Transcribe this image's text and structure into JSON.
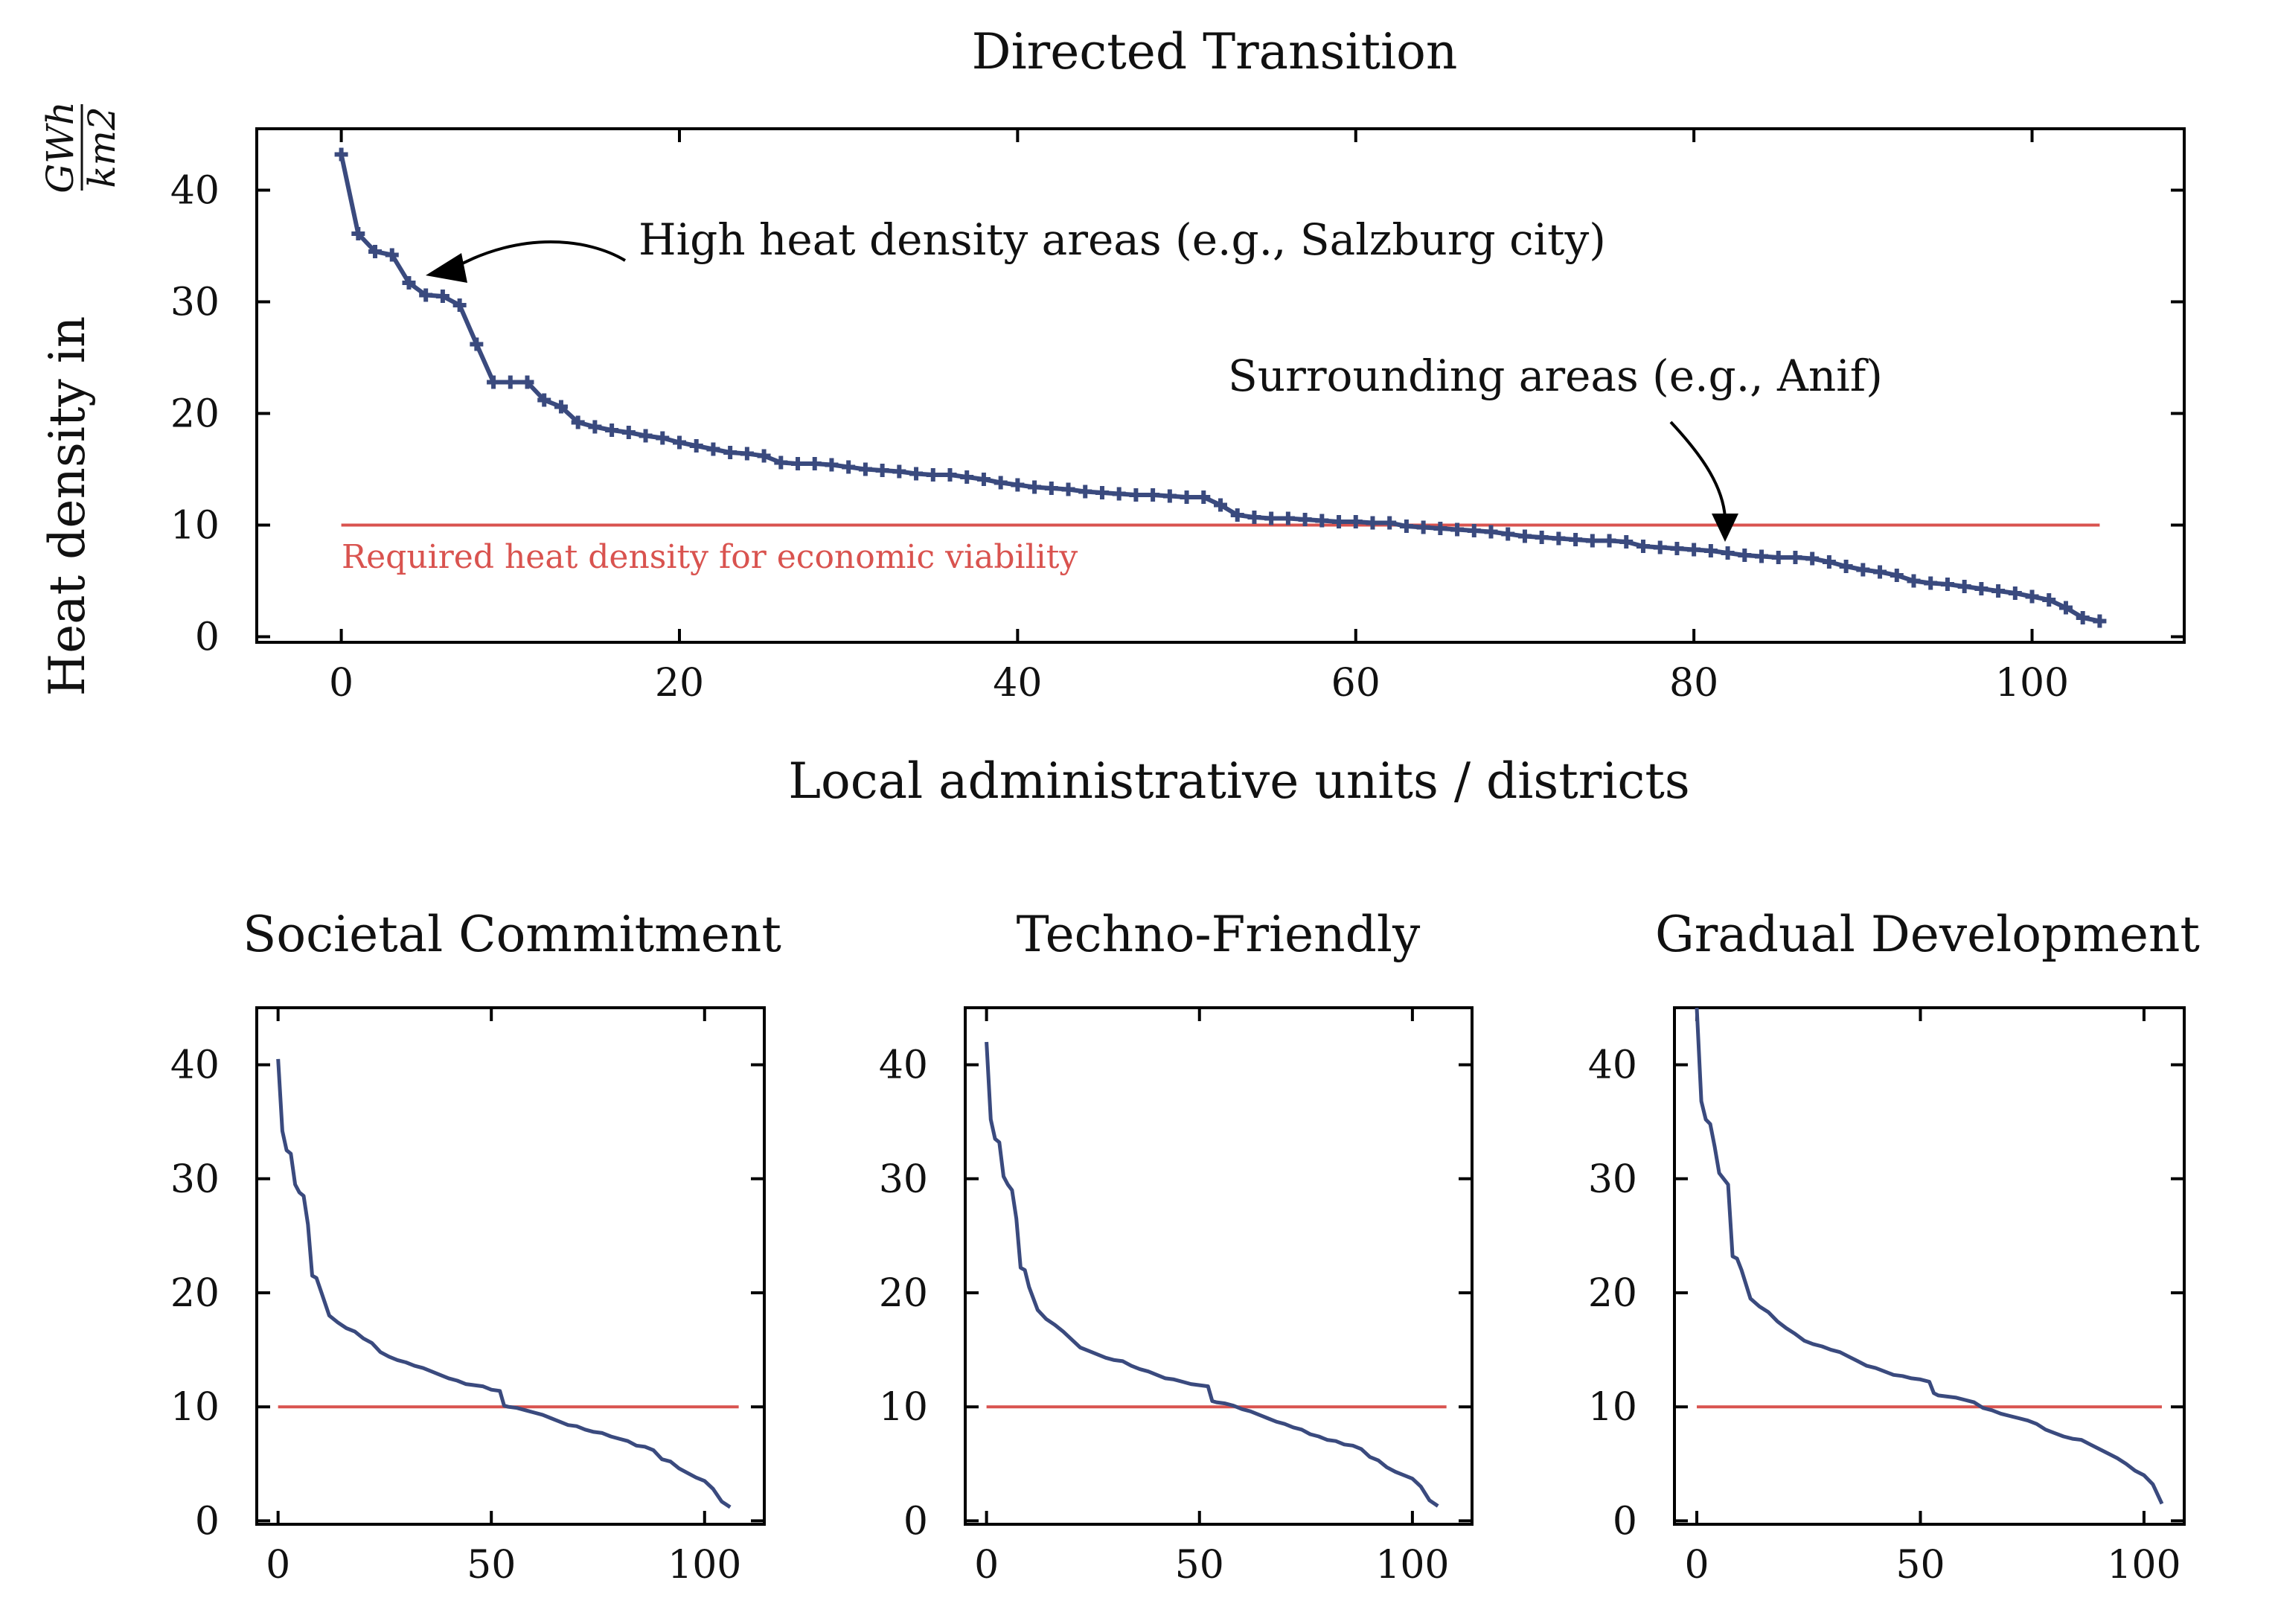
{
  "colors": {
    "series": "#3a4a7e",
    "threshold": "#d9534f",
    "axis": "#000000"
  },
  "shared": {
    "ylabel": "Heat density in",
    "ylabel_unit_numerator": "GWh",
    "ylabel_unit_denominator": "km2"
  },
  "chart_data": [
    {
      "id": "main",
      "type": "line",
      "title": "Directed Transition",
      "xlabel": "Local administrative units / districts",
      "ylabel": "Heat density in GWh/km2",
      "xlim": [
        -5,
        109
      ],
      "ylim": [
        -0.5,
        45.5
      ],
      "xticks": [
        0,
        20,
        40,
        60,
        80,
        100
      ],
      "yticks": [
        0,
        10,
        20,
        30,
        40
      ],
      "marker": "plus",
      "series": [
        {
          "x": [
            0,
            1,
            2,
            3,
            4,
            5,
            6,
            7,
            8,
            9,
            10,
            11,
            12,
            13,
            14,
            15,
            16,
            17,
            18,
            19,
            20,
            21,
            22,
            23,
            24,
            25,
            26,
            27,
            28,
            29,
            30,
            31,
            32,
            33,
            34,
            35,
            36,
            37,
            38,
            39,
            40,
            41,
            42,
            43,
            44,
            45,
            46,
            47,
            48,
            49,
            50,
            51,
            52,
            53,
            54,
            55,
            56,
            57,
            58,
            59,
            60,
            61,
            62,
            63,
            64,
            65,
            66,
            67,
            68,
            69,
            70,
            71,
            72,
            73,
            74,
            75,
            76,
            77,
            78,
            79,
            80,
            81,
            82,
            83,
            84,
            85,
            86,
            87,
            88,
            89,
            90,
            91,
            92,
            93,
            94,
            95,
            96,
            97,
            98,
            99,
            100,
            101,
            102,
            103,
            104
          ],
          "values": [
            43.2,
            36.1,
            34.5,
            34.2,
            31.7,
            30.6,
            30.5,
            29.7,
            26.2,
            22.8,
            22.8,
            22.8,
            21.2,
            20.6,
            19.2,
            18.8,
            18.5,
            18.3,
            18.0,
            17.8,
            17.4,
            17.1,
            16.8,
            16.5,
            16.4,
            16.2,
            15.6,
            15.5,
            15.5,
            15.4,
            15.2,
            15.0,
            14.9,
            14.8,
            14.6,
            14.5,
            14.5,
            14.3,
            14.1,
            13.8,
            13.6,
            13.4,
            13.3,
            13.2,
            13.0,
            12.9,
            12.8,
            12.7,
            12.7,
            12.6,
            12.5,
            12.5,
            11.8,
            10.9,
            10.7,
            10.6,
            10.6,
            10.5,
            10.4,
            10.3,
            10.3,
            10.2,
            10.2,
            9.9,
            9.8,
            9.7,
            9.6,
            9.5,
            9.4,
            9.2,
            9.0,
            8.9,
            8.8,
            8.7,
            8.6,
            8.6,
            8.5,
            8.1,
            8.0,
            7.9,
            7.8,
            7.7,
            7.5,
            7.3,
            7.2,
            7.1,
            7.1,
            7.0,
            6.7,
            6.3,
            6.0,
            5.8,
            5.5,
            5.0,
            4.8,
            4.7,
            4.5,
            4.3,
            4.1,
            3.9,
            3.6,
            3.3,
            2.6,
            1.7,
            1.4
          ]
        }
      ],
      "threshold": {
        "value": 10,
        "x": [
          0,
          104
        ],
        "label": "Required heat density for economic viability"
      },
      "annotations": [
        {
          "text": "High heat density areas (e.g., Salzburg city)",
          "target": [
            5,
            31.5
          ]
        },
        {
          "text": "Surrounding areas (e.g., Anif)",
          "target": [
            82,
            8.7
          ]
        }
      ]
    },
    {
      "id": "societal",
      "type": "line",
      "title": "Societal Commitment",
      "xlim": [
        -5,
        114
      ],
      "ylim": [
        -0.3,
        45
      ],
      "xticks": [
        0,
        50,
        100
      ],
      "yticks": [
        0,
        10,
        20,
        30,
        40
      ],
      "series": [
        {
          "x": [
            0,
            1,
            2,
            3,
            4,
            5,
            6,
            7,
            8,
            9,
            10,
            12,
            14,
            16,
            18,
            20,
            22,
            24,
            26,
            28,
            30,
            32,
            34,
            36,
            38,
            40,
            42,
            44,
            46,
            48,
            50,
            52,
            53,
            54,
            56,
            58,
            60,
            62,
            64,
            66,
            68,
            70,
            72,
            74,
            76,
            78,
            80,
            82,
            84,
            86,
            88,
            90,
            92,
            94,
            96,
            98,
            100,
            102,
            104,
            106
          ],
          "values": [
            40.5,
            34.2,
            32.5,
            32.2,
            29.5,
            28.8,
            28.5,
            26.0,
            21.5,
            21.3,
            20.2,
            18.0,
            17.4,
            16.9,
            16.6,
            16.0,
            15.6,
            14.8,
            14.4,
            14.1,
            13.9,
            13.6,
            13.4,
            13.1,
            12.8,
            12.5,
            12.3,
            12.0,
            11.9,
            11.8,
            11.5,
            11.4,
            10.1,
            10.0,
            9.9,
            9.7,
            9.5,
            9.3,
            9.0,
            8.7,
            8.4,
            8.3,
            8.0,
            7.8,
            7.7,
            7.4,
            7.2,
            7.0,
            6.6,
            6.5,
            6.2,
            5.4,
            5.2,
            4.6,
            4.2,
            3.8,
            3.5,
            2.8,
            1.7,
            1.2
          ]
        }
      ],
      "threshold": {
        "value": 10,
        "x": [
          0,
          108
        ]
      }
    },
    {
      "id": "techno",
      "type": "line",
      "title": "Techno-Friendly",
      "xlim": [
        -5,
        114
      ],
      "ylim": [
        -0.3,
        45
      ],
      "xticks": [
        0,
        50,
        100
      ],
      "yticks": [
        0,
        10,
        20,
        30,
        40
      ],
      "series": [
        {
          "x": [
            0,
            1,
            2,
            3,
            4,
            5,
            6,
            7,
            8,
            9,
            10,
            12,
            14,
            16,
            18,
            20,
            22,
            24,
            26,
            28,
            30,
            32,
            34,
            36,
            38,
            40,
            42,
            44,
            46,
            48,
            50,
            52,
            53,
            54,
            56,
            58,
            60,
            62,
            64,
            66,
            68,
            70,
            72,
            74,
            76,
            78,
            80,
            82,
            84,
            86,
            88,
            90,
            92,
            94,
            96,
            98,
            100,
            102,
            104,
            106
          ],
          "values": [
            42.0,
            35.2,
            33.5,
            33.2,
            30.2,
            29.5,
            29.0,
            26.5,
            22.2,
            22.0,
            20.5,
            18.5,
            17.7,
            17.2,
            16.6,
            15.9,
            15.2,
            14.9,
            14.6,
            14.3,
            14.1,
            14.0,
            13.6,
            13.3,
            13.1,
            12.8,
            12.5,
            12.4,
            12.2,
            12.0,
            11.9,
            11.8,
            10.5,
            10.4,
            10.3,
            10.1,
            9.8,
            9.6,
            9.3,
            9.0,
            8.7,
            8.5,
            8.2,
            8.0,
            7.6,
            7.4,
            7.1,
            7.0,
            6.7,
            6.6,
            6.3,
            5.6,
            5.3,
            4.7,
            4.3,
            4.0,
            3.7,
            3.0,
            1.8,
            1.3
          ]
        }
      ],
      "threshold": {
        "value": 10,
        "x": [
          0,
          108
        ]
      }
    },
    {
      "id": "gradual",
      "type": "line",
      "title": "Gradual Development",
      "xlim": [
        -5,
        109
      ],
      "ylim": [
        -0.3,
        45
      ],
      "xticks": [
        0,
        50,
        100
      ],
      "yticks": [
        0,
        10,
        20,
        30,
        40
      ],
      "series": [
        {
          "x": [
            0,
            1,
            2,
            3,
            4,
            5,
            6,
            7,
            8,
            9,
            10,
            12,
            14,
            16,
            18,
            20,
            22,
            24,
            26,
            28,
            30,
            32,
            34,
            36,
            38,
            40,
            42,
            44,
            46,
            48,
            50,
            52,
            53,
            54,
            56,
            58,
            60,
            62,
            64,
            66,
            68,
            70,
            72,
            74,
            76,
            78,
            80,
            82,
            84,
            86,
            88,
            90,
            92,
            94,
            96,
            98,
            100,
            102,
            104
          ],
          "values": [
            45.0,
            36.8,
            35.2,
            34.8,
            32.8,
            30.5,
            30.0,
            29.5,
            23.2,
            23.0,
            22.0,
            19.5,
            18.8,
            18.3,
            17.5,
            16.9,
            16.4,
            15.8,
            15.5,
            15.3,
            15.0,
            14.8,
            14.4,
            14.0,
            13.6,
            13.4,
            13.1,
            12.8,
            12.7,
            12.5,
            12.4,
            12.2,
            11.2,
            11.0,
            10.9,
            10.8,
            10.6,
            10.4,
            9.9,
            9.7,
            9.4,
            9.2,
            9.0,
            8.8,
            8.5,
            8.0,
            7.7,
            7.4,
            7.2,
            7.1,
            6.7,
            6.3,
            5.9,
            5.5,
            5.0,
            4.4,
            4.0,
            3.2,
            1.5
          ]
        }
      ],
      "threshold": {
        "value": 10,
        "x": [
          0,
          104
        ]
      }
    }
  ]
}
